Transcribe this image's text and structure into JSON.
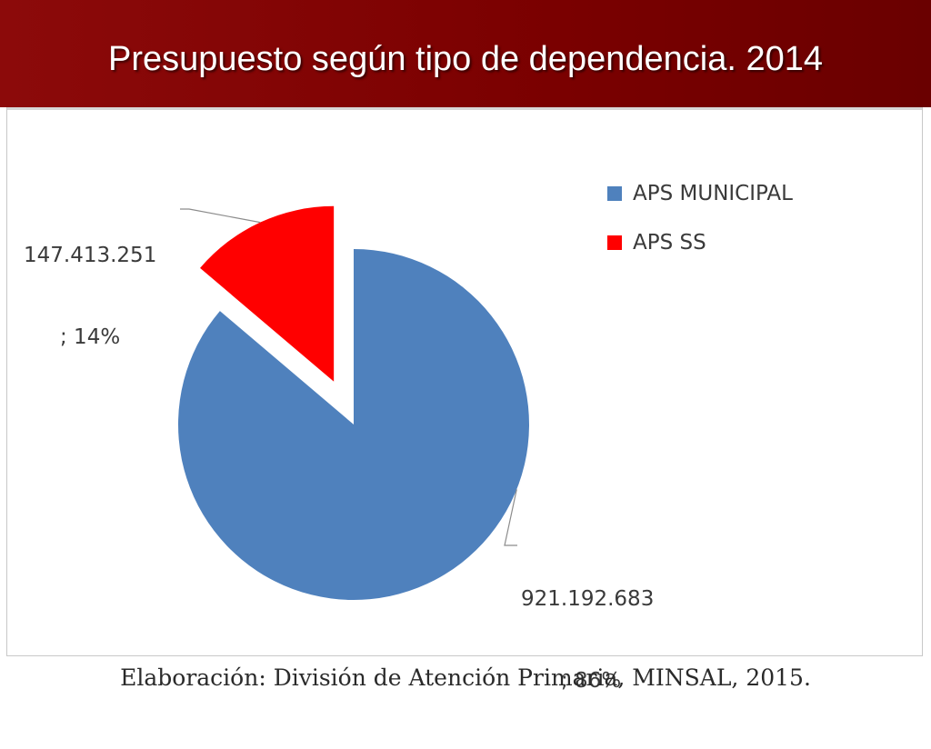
{
  "slide": {
    "title": "Presupuesto según tipo de dependencia. 2014",
    "source": "Elaboración: División de Atención Primaria, MINSAL, 2015."
  },
  "colors": {
    "title_bar": "#7a0000",
    "title_text": "#ffffff",
    "aps_municipal": "#4f81bd",
    "aps_ss": "#ff0000"
  },
  "chart_data": {
    "type": "pie",
    "title": "",
    "legend_position": "right",
    "slices": [
      {
        "name": "APS MUNICIPAL",
        "value": 921192683,
        "percent": 86,
        "value_label": "921.192.683",
        "pct_label": "; 86%",
        "color": "#4f81bd",
        "exploded": false
      },
      {
        "name": "APS SS",
        "value": 147413251,
        "percent": 14,
        "value_label": "147.413.251",
        "pct_label": "; 14%",
        "color": "#ff0000",
        "exploded": true
      }
    ]
  }
}
